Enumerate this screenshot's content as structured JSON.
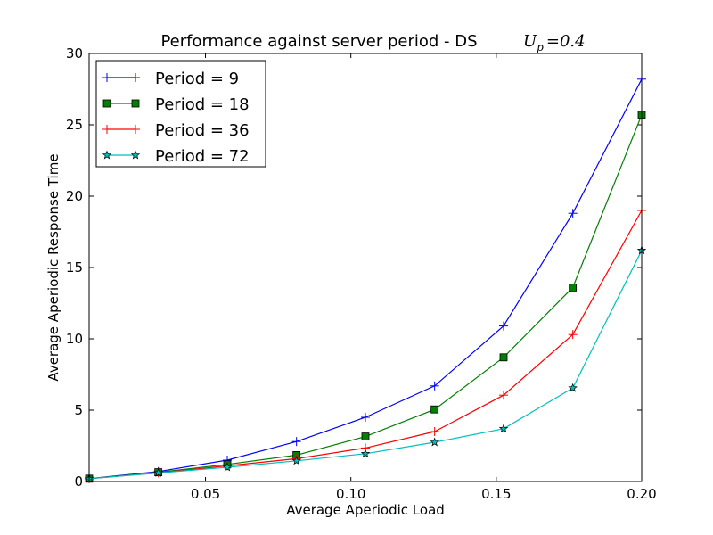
{
  "chart_data": {
    "type": "line",
    "title": "Performance against server period - DS",
    "title_math": {
      "symbol": "U",
      "subscript": "p",
      "equals": "=",
      "value": "0.4"
    },
    "xlabel": "Average Aperiodic Load",
    "ylabel": "Average Aperiodic Response Time",
    "xlim": [
      0.01,
      0.2
    ],
    "ylim": [
      0,
      30
    ],
    "xticks": [
      0.05,
      0.1,
      0.15,
      0.2
    ],
    "xtick_labels": [
      "0.05",
      "0.10",
      "0.15",
      "0.20"
    ],
    "yticks": [
      0,
      5,
      10,
      15,
      20,
      25,
      30
    ],
    "ytick_labels": [
      "0",
      "5",
      "10",
      "15",
      "20",
      "25",
      "30"
    ],
    "grid": false,
    "legend_position": "top-left",
    "x": [
      0.01,
      0.0338,
      0.0575,
      0.0813,
      0.105,
      0.1288,
      0.1525,
      0.1763,
      0.2
    ],
    "series": [
      {
        "name": "Period = 9",
        "color": "#0000ff",
        "marker": "plus",
        "values": [
          0.2,
          0.7,
          1.5,
          2.8,
          4.5,
          6.7,
          10.9,
          18.8,
          28.2
        ]
      },
      {
        "name": "Period = 18",
        "color": "#008000",
        "marker": "square",
        "values": [
          0.2,
          0.65,
          1.2,
          1.85,
          3.15,
          5.05,
          8.7,
          13.6,
          25.7
        ]
      },
      {
        "name": "Period = 36",
        "color": "#ff0000",
        "marker": "plus",
        "values": [
          0.2,
          0.6,
          1.1,
          1.6,
          2.35,
          3.5,
          6.05,
          10.3,
          19.0
        ]
      },
      {
        "name": "Period = 72",
        "color": "#00bfbf",
        "marker": "star",
        "values": [
          0.2,
          0.6,
          1.0,
          1.45,
          1.95,
          2.75,
          3.7,
          6.55,
          16.2
        ]
      }
    ]
  }
}
